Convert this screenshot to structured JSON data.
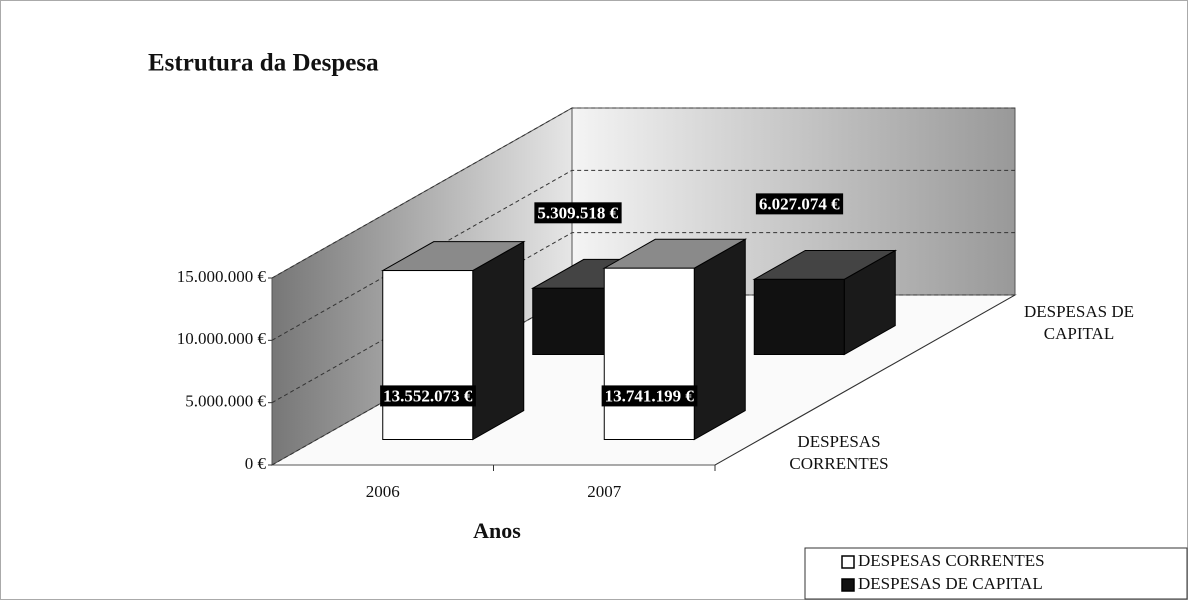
{
  "chart_data": {
    "type": "bar3d",
    "title": "Estrutura da Despesa",
    "x_label": "Anos",
    "categories": [
      "2006",
      "2007"
    ],
    "series": [
      {
        "name": "DESPESAS CORRENTES",
        "color": "#ffffff",
        "values": [
          13552073,
          13741199
        ],
        "value_labels": [
          "13.552.073 €",
          "13.741.199 €"
        ]
      },
      {
        "name": "DESPESAS DE CAPITAL",
        "color": "#111111",
        "values": [
          5309518,
          6027074
        ],
        "value_labels": [
          "5.309.518 €",
          "6.027.074 €"
        ]
      }
    ],
    "ylim": [
      0,
      15000000
    ],
    "yticks": [
      {
        "value": 0,
        "label": "0 €"
      },
      {
        "value": 5000000,
        "label": "5.000.000 €"
      },
      {
        "value": 10000000,
        "label": "10.000.000 €"
      },
      {
        "value": 15000000,
        "label": "15.000.000 €"
      }
    ],
    "grid": true,
    "legend": "bottom-right"
  }
}
